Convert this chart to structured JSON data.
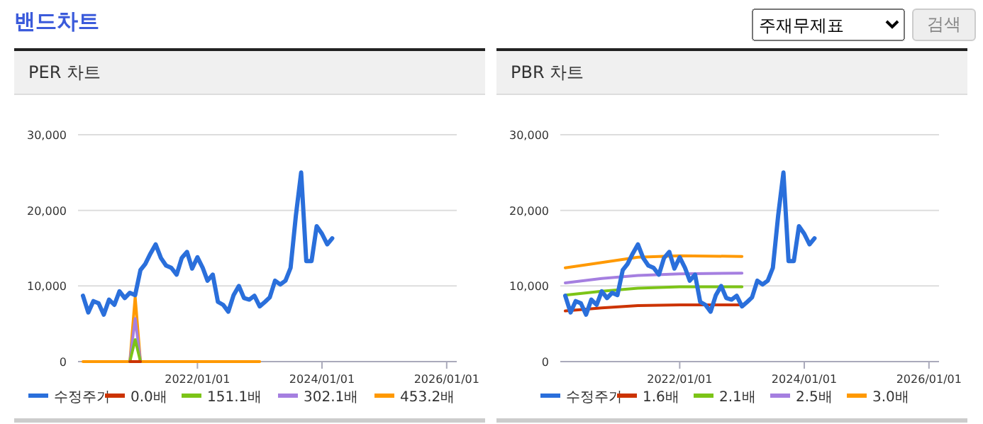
{
  "chart_data": [
    {
      "type": "line",
      "title": "PER 차트",
      "annotations": [
        "밴드차트",
        "주재무제표",
        "검색"
      ],
      "xlim": [
        "2020-02-01",
        "2026-03-01"
      ],
      "xticks": [
        {
          "value": "2022-01-01",
          "label": "2022/01/01"
        },
        {
          "value": "2024-01-01",
          "label": "2024/01/01"
        },
        {
          "value": "2026-01-01",
          "label": "2026/01/01"
        }
      ],
      "ylim": [
        0,
        30000
      ],
      "yticks": [
        {
          "value": 0,
          "label": "0"
        },
        {
          "value": 10000,
          "label": "10,000"
        },
        {
          "value": 20000,
          "label": "20,000"
        },
        {
          "value": 30000,
          "label": "30,000"
        }
      ],
      "grid": "y",
      "legend": "bottom",
      "series": [
        {
          "name": "수정주가",
          "color": "#2a6fdb",
          "x": [
            "2020-03",
            "2020-04",
            "2020-05",
            "2020-06",
            "2020-07",
            "2020-08",
            "2020-09",
            "2020-10",
            "2020-11",
            "2020-12",
            "2021-01",
            "2021-02",
            "2021-03",
            "2021-04",
            "2021-05",
            "2021-06",
            "2021-07",
            "2021-08",
            "2021-09",
            "2021-10",
            "2021-11",
            "2021-12",
            "2022-01",
            "2022-02",
            "2022-03",
            "2022-04",
            "2022-05",
            "2022-06",
            "2022-07",
            "2022-08",
            "2022-09",
            "2022-10",
            "2022-11",
            "2022-12",
            "2023-01",
            "2023-02",
            "2023-03",
            "2023-04",
            "2023-05",
            "2023-06",
            "2023-07",
            "2023-08",
            "2023-09",
            "2023-10",
            "2023-11",
            "2023-12",
            "2024-01",
            "2024-02",
            "2024-03"
          ],
          "values": [
            8700,
            6500,
            8000,
            7700,
            6200,
            8200,
            7500,
            9300,
            8400,
            9100,
            8800,
            12100,
            12900,
            14300,
            15500,
            13700,
            12700,
            12400,
            11500,
            13700,
            14500,
            12300,
            13800,
            12400,
            10700,
            11500,
            7900,
            7500,
            6600,
            8800,
            10000,
            8400,
            8200,
            8700,
            7300,
            7900,
            8500,
            10700,
            10200,
            10700,
            12400,
            19300,
            25000,
            13300,
            13300,
            17900,
            16900,
            15500,
            16300
          ]
        },
        {
          "name": "0.0배",
          "color": "#cc3300",
          "x": [
            "2020-12",
            "2021-01",
            "2021-02"
          ],
          "values": [
            0,
            0,
            0
          ]
        },
        {
          "name": "151.1배",
          "color": "#7cc417",
          "x": [
            "2020-12",
            "2021-01",
            "2021-02"
          ],
          "values": [
            0,
            2900,
            0
          ]
        },
        {
          "name": "302.1배",
          "color": "#a57fe0",
          "x": [
            "2020-12",
            "2021-01",
            "2021-02"
          ],
          "values": [
            0,
            5700,
            0
          ]
        },
        {
          "name": "453.2배",
          "color": "#ff9900",
          "x": [
            "2020-03",
            "2020-12",
            "2021-01",
            "2021-02",
            "2023-01"
          ],
          "values": [
            0,
            0,
            8600,
            0,
            0
          ]
        }
      ]
    },
    {
      "type": "line",
      "title": "PBR 차트",
      "xlim": [
        "2020-02-01",
        "2026-03-01"
      ],
      "xticks": [
        {
          "value": "2022-01-01",
          "label": "2022/01/01"
        },
        {
          "value": "2024-01-01",
          "label": "2024/01/01"
        },
        {
          "value": "2026-01-01",
          "label": "2026/01/01"
        }
      ],
      "ylim": [
        0,
        30000
      ],
      "yticks": [
        {
          "value": 0,
          "label": "0"
        },
        {
          "value": 10000,
          "label": "10,000"
        },
        {
          "value": 20000,
          "label": "20,000"
        },
        {
          "value": 30000,
          "label": "30,000"
        }
      ],
      "grid": "y",
      "legend": "bottom",
      "series": [
        {
          "name": "수정주가",
          "color": "#2a6fdb",
          "x": [
            "2020-03",
            "2020-04",
            "2020-05",
            "2020-06",
            "2020-07",
            "2020-08",
            "2020-09",
            "2020-10",
            "2020-11",
            "2020-12",
            "2021-01",
            "2021-02",
            "2021-03",
            "2021-04",
            "2021-05",
            "2021-06",
            "2021-07",
            "2021-08",
            "2021-09",
            "2021-10",
            "2021-11",
            "2021-12",
            "2022-01",
            "2022-02",
            "2022-03",
            "2022-04",
            "2022-05",
            "2022-06",
            "2022-07",
            "2022-08",
            "2022-09",
            "2022-10",
            "2022-11",
            "2022-12",
            "2023-01",
            "2023-02",
            "2023-03",
            "2023-04",
            "2023-05",
            "2023-06",
            "2023-07",
            "2023-08",
            "2023-09",
            "2023-10",
            "2023-11",
            "2023-12",
            "2024-01",
            "2024-02",
            "2024-03"
          ],
          "values": [
            8700,
            6500,
            8000,
            7700,
            6200,
            8200,
            7500,
            9300,
            8400,
            9100,
            8800,
            12100,
            12900,
            14300,
            15500,
            13700,
            12700,
            12400,
            11500,
            13700,
            14500,
            12300,
            13800,
            12400,
            10700,
            11500,
            7900,
            7500,
            6600,
            8800,
            10000,
            8400,
            8200,
            8700,
            7300,
            7900,
            8500,
            10700,
            10200,
            10700,
            12400,
            19300,
            25000,
            13300,
            13300,
            17900,
            16900,
            15500,
            16300
          ]
        },
        {
          "name": "1.6배",
          "color": "#cc3300",
          "x": [
            "2020-03",
            "2020-10",
            "2021-05",
            "2022-01",
            "2023-01"
          ],
          "values": [
            6700,
            7100,
            7400,
            7500,
            7500
          ]
        },
        {
          "name": "2.1배",
          "color": "#7cc417",
          "x": [
            "2020-03",
            "2020-10",
            "2021-05",
            "2022-01",
            "2023-01"
          ],
          "values": [
            8800,
            9300,
            9700,
            9900,
            9900
          ]
        },
        {
          "name": "2.5배",
          "color": "#a57fe0",
          "x": [
            "2020-03",
            "2020-10",
            "2021-05",
            "2022-01",
            "2023-01"
          ],
          "values": [
            10400,
            11000,
            11400,
            11600,
            11700
          ]
        },
        {
          "name": "3.0배",
          "color": "#ff9900",
          "x": [
            "2020-03",
            "2020-10",
            "2021-05",
            "2022-01",
            "2023-01"
          ],
          "values": [
            12400,
            13100,
            13800,
            14000,
            13900
          ]
        }
      ]
    }
  ]
}
